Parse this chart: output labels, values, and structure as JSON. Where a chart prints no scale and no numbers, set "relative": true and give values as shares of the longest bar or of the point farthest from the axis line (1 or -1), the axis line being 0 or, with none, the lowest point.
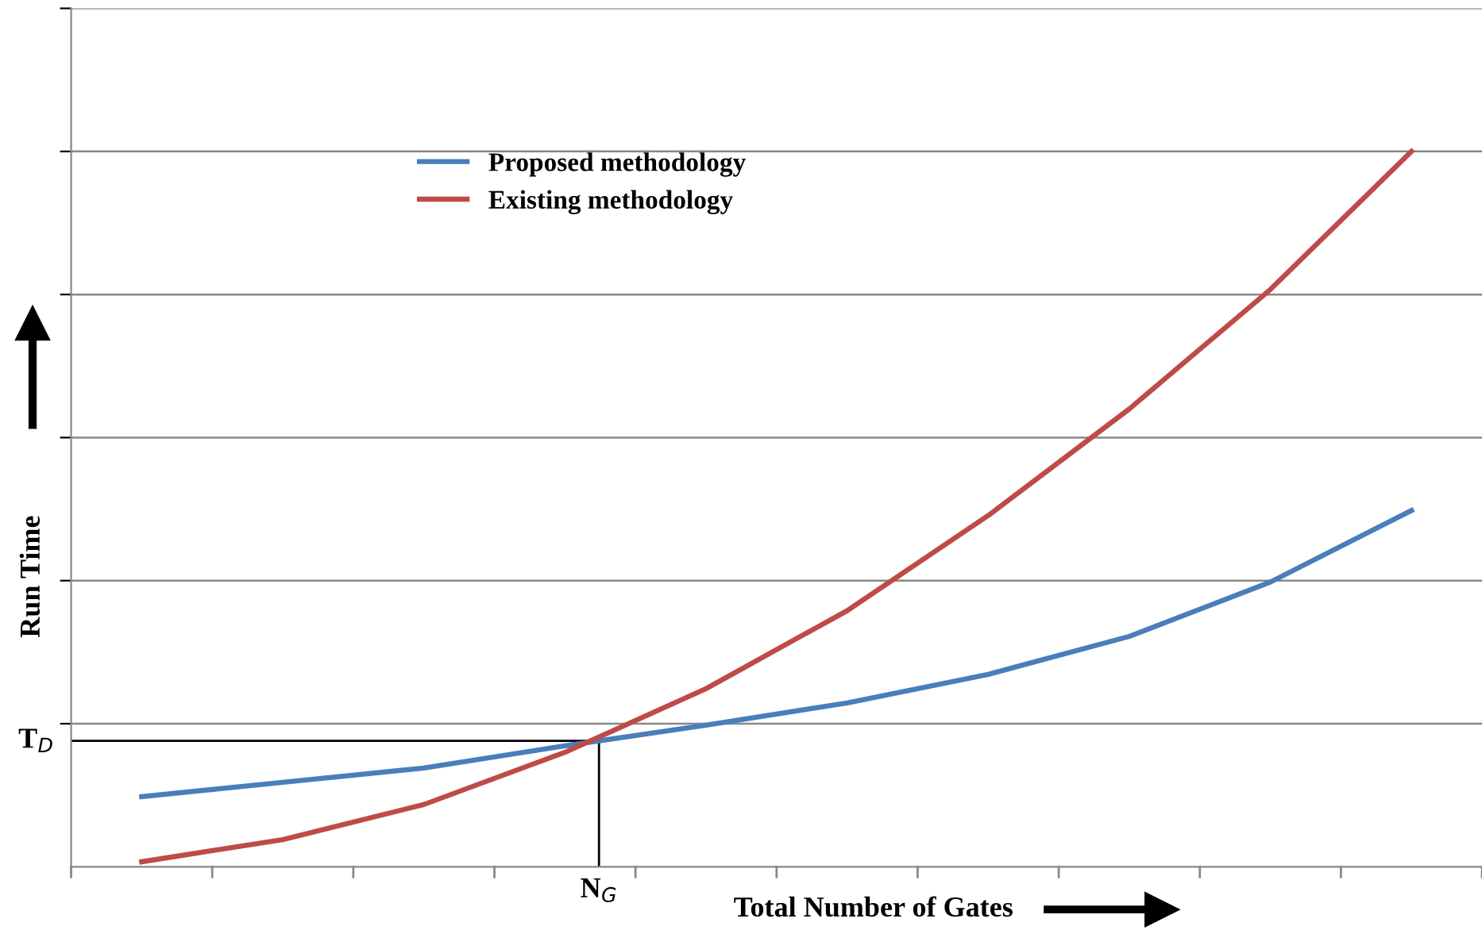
{
  "chart_data": {
    "type": "line",
    "relative": true,
    "xlabel": "Total Number of Gates",
    "ylabel": "Run Time",
    "categories": [
      null,
      null,
      null,
      null,
      null,
      null,
      null,
      null,
      null,
      null
    ],
    "series": [
      {
        "name": "Proposed methodology",
        "color": "#4a7ebb",
        "values": [
          0.098,
          0.118,
          0.138,
          0.169,
          0.198,
          0.229,
          0.269,
          0.322,
          0.398,
          0.498
        ]
      },
      {
        "name": "Existing methodology",
        "color": "#be4b48",
        "values": [
          0.007,
          0.038,
          0.087,
          0.16,
          0.249,
          0.358,
          0.491,
          0.64,
          0.807,
          1
        ]
      }
    ],
    "ref_lines": [
      {
        "axis": "y",
        "value": 0.176,
        "label": "T$_{D}$",
        "color": "#000000"
      }
    ],
    "annotations": [
      "N$_{G}$"
    ],
    "grid": "y",
    "legend": "top left",
    "marker": "none",
    "line_style": "solid"
  }
}
